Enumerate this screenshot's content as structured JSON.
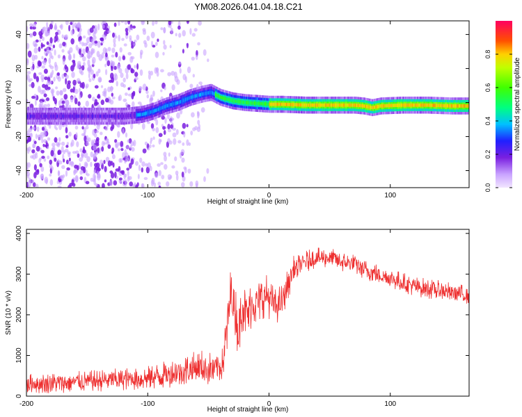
{
  "figure_title": "YM08.2026.041.04.18.C21",
  "colors": {
    "snr_line": "#ee2f2f",
    "axis": "#000000",
    "background": "#ffffff"
  },
  "chart_data": [
    {
      "type": "heatmap",
      "title": "YM08.2026.041.04.18.C21",
      "xlabel": "Height of straight line (km)",
      "ylabel": "Frequency (Hz)",
      "xlim": [
        -200,
        165
      ],
      "ylim": [
        -50,
        48
      ],
      "xticks": [
        -200,
        -100,
        0,
        100
      ],
      "xtick_labels": [
        "-200",
        "-100",
        "0",
        "100"
      ],
      "yticks": [
        -40,
        -20,
        0,
        20,
        40
      ],
      "ytick_labels": [
        "-40",
        "-20",
        "0",
        "20",
        "40"
      ],
      "noise_region_x": [
        -200,
        -50
      ],
      "ridge": {
        "description": "main spectral ridge: frequency (Hz) vs height (km)",
        "x": [
          -200,
          -160,
          -140,
          -120,
          -105,
          -95,
          -85,
          -75,
          -65,
          -55,
          -48,
          -40,
          -30,
          -20,
          -10,
          0,
          10,
          30,
          50,
          70,
          78,
          85,
          92,
          110,
          130,
          150,
          165
        ],
        "y": [
          -8,
          -8,
          -8,
          -8,
          -7,
          -5,
          -2,
          0,
          3,
          5,
          6,
          3,
          1,
          0,
          -0.5,
          -1,
          -1,
          -1.5,
          -1.5,
          -1.5,
          -2,
          -3,
          -2,
          -1.5,
          -1.5,
          -2,
          -2
        ]
      },
      "colorbar": {
        "label": "Normalized spectral amplitude",
        "range": [
          0.0,
          1.0
        ],
        "ticks": [
          0.0,
          0.2,
          0.4,
          0.6,
          0.8
        ],
        "tick_labels": [
          "0.0",
          "0.2",
          "0.4",
          "0.6",
          "0.8"
        ]
      }
    },
    {
      "type": "line",
      "xlabel": "Height of straight line (km)",
      "ylabel": "SNR (10 * v/v)",
      "xlim": [
        -200,
        165
      ],
      "ylim": [
        0,
        4100
      ],
      "xticks": [
        -200,
        -100,
        0,
        100
      ],
      "xtick_labels": [
        "-200",
        "-100",
        "0",
        "100"
      ],
      "yticks": [
        0,
        1000,
        2000,
        3000,
        4000
      ],
      "ytick_labels": [
        "0",
        "1000",
        "2000",
        "3000",
        "4000"
      ],
      "series": [
        {
          "name": "SNR",
          "x": [
            -200,
            -180,
            -160,
            -140,
            -120,
            -100,
            -80,
            -65,
            -55,
            -45,
            -38,
            -34,
            -31,
            -28,
            -25,
            -22,
            -18,
            -14,
            -10,
            -6,
            -2,
            0,
            5,
            10,
            15,
            20,
            25,
            30,
            40,
            50,
            60,
            70,
            80,
            90,
            100,
            110,
            120,
            130,
            140,
            150,
            160,
            165
          ],
          "y": [
            300,
            320,
            350,
            380,
            420,
            450,
            560,
            650,
            700,
            650,
            800,
            1800,
            2600,
            2100,
            1600,
            2300,
            2000,
            2300,
            2300,
            2400,
            2500,
            2400,
            2200,
            2300,
            2700,
            3100,
            3200,
            3300,
            3400,
            3400,
            3300,
            3250,
            3100,
            3000,
            2900,
            2800,
            2700,
            2650,
            2600,
            2550,
            2500,
            2500
          ],
          "spread": [
            250,
            250,
            260,
            270,
            280,
            300,
            360,
            420,
            450,
            420,
            400,
            800,
            700,
            700,
            700,
            700,
            700,
            600,
            600,
            550,
            500,
            500,
            450,
            450,
            400,
            350,
            300,
            280,
            250,
            250,
            250,
            250,
            250,
            250,
            250,
            250,
            250,
            250,
            250,
            250,
            250,
            250
          ]
        }
      ]
    }
  ]
}
